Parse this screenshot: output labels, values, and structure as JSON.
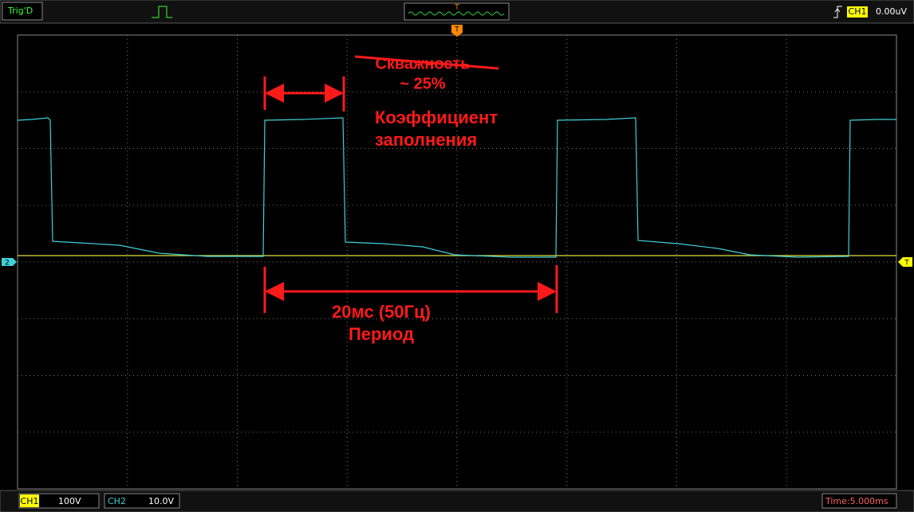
{
  "status_bar": {
    "trigger_state": "Trig'D",
    "trigger_marker": "T",
    "trigger_channel": "CH1",
    "trigger_level": "0.00uV"
  },
  "screen": {
    "ch2_marker": "2",
    "trigger_level_marker": "T"
  },
  "annotations": {
    "struck_term": "Скважность",
    "struck_value": "~ 25%",
    "duty_line1": "Коэффициент",
    "duty_line2": "заполнения",
    "period_value": "20мс (50Гц)",
    "period_label": "Период"
  },
  "footer": {
    "ch1_label": "CH1",
    "ch1_scale": "100V",
    "ch2_label": "CH2",
    "ch2_scale": "10.0V",
    "timebase": "Time:5.000ms"
  }
}
